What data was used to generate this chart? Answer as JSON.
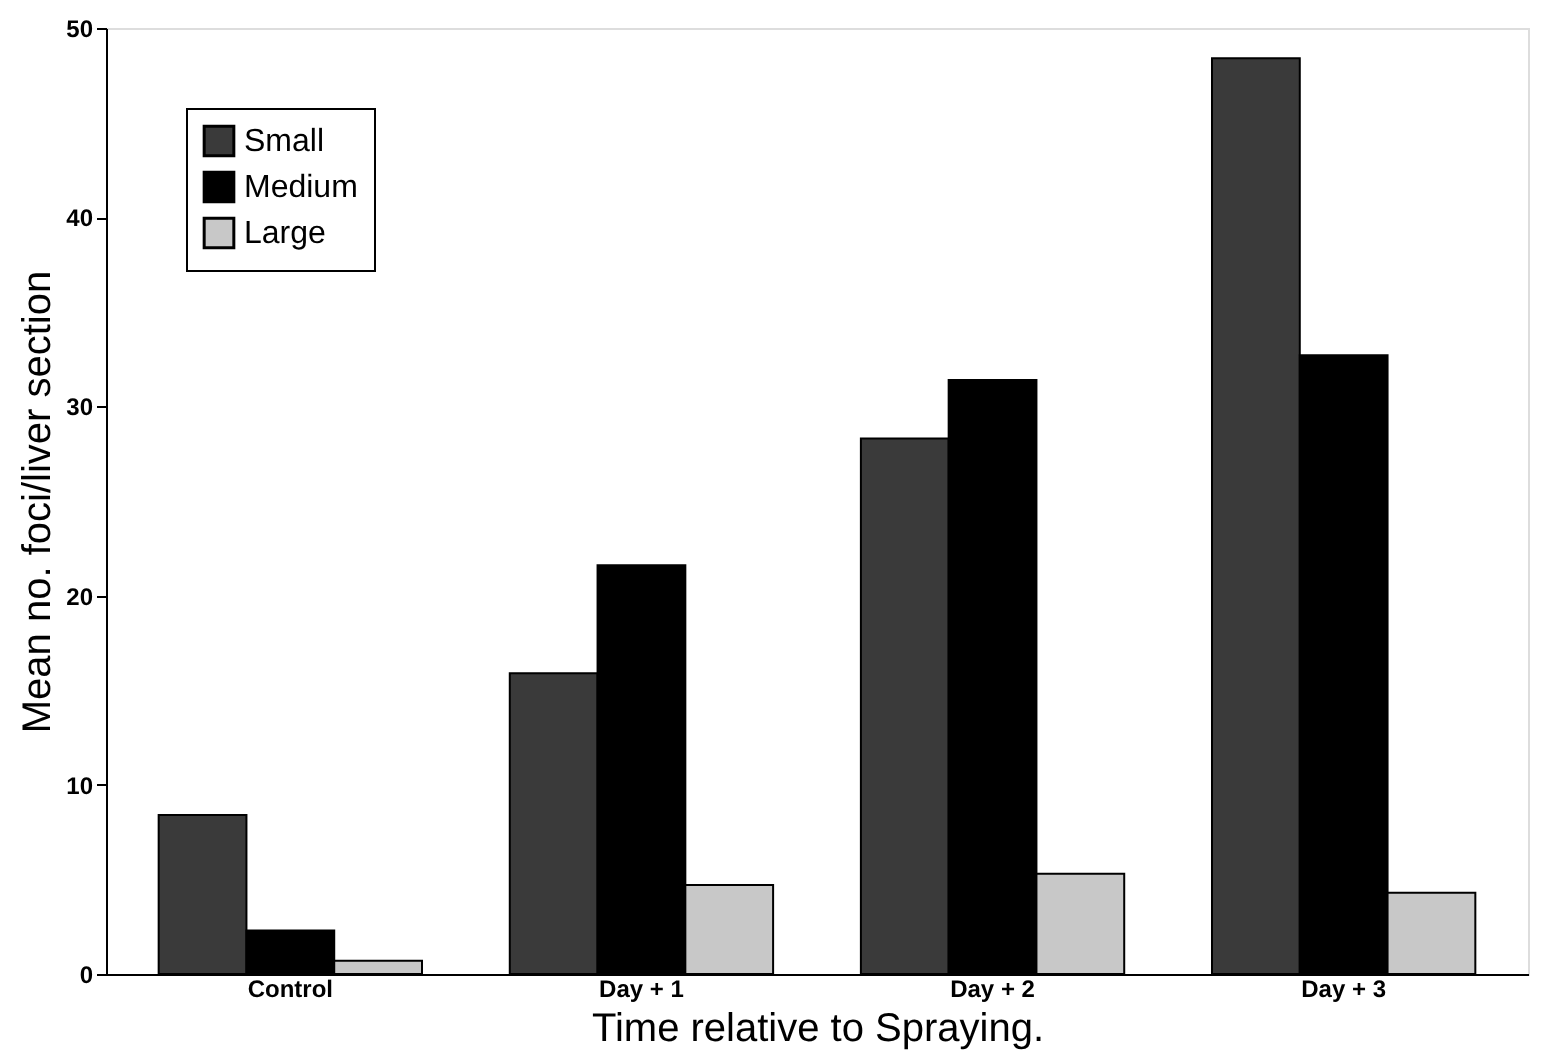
{
  "chart_data": {
    "type": "bar",
    "xlabel": "Time relative to Spraying.",
    "ylabel": "Mean no. foci/liver section",
    "categories": [
      "Control",
      "Day + 1",
      "Day + 2",
      "Day + 3"
    ],
    "series": [
      {
        "name": "Small",
        "color": "#3a3a3a",
        "values": [
          8.4,
          15.9,
          28.3,
          48.4
        ]
      },
      {
        "name": "Medium",
        "color": "#000000",
        "values": [
          2.3,
          21.6,
          31.4,
          32.7
        ]
      },
      {
        "name": "Large",
        "color": "#c8c8c8",
        "values": [
          0.7,
          4.7,
          5.3,
          4.3
        ]
      }
    ],
    "ylim": [
      0,
      50
    ],
    "yticks": [
      0,
      10,
      20,
      30,
      40,
      50
    ],
    "grid": false,
    "legend": "top left"
  }
}
